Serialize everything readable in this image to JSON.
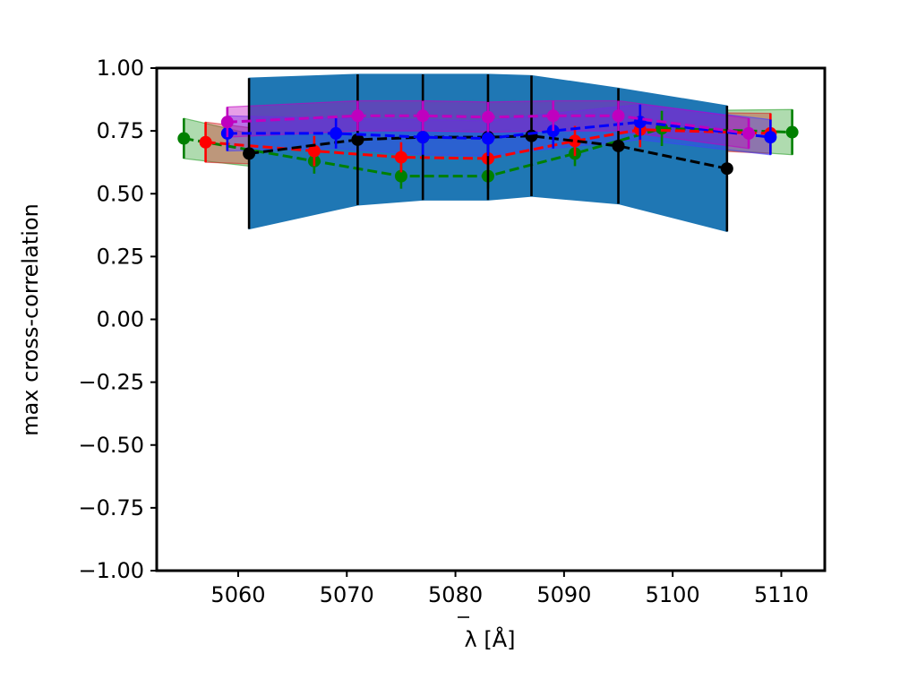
{
  "chart_data": {
    "type": "line",
    "xlabel": "λ [Å]",
    "ylabel": "max cross-correlation",
    "xlim": [
      5052.5,
      5114
    ],
    "ylim": [
      -1.0,
      1.0
    ],
    "x_ticks": [
      {
        "value": 5060,
        "label": "5060"
      },
      {
        "value": 5070,
        "label": "5070"
      },
      {
        "value": 5080,
        "label": "5080"
      },
      {
        "value": 5090,
        "label": "5090"
      },
      {
        "value": 5100,
        "label": "5100"
      },
      {
        "value": 5110,
        "label": "5110"
      }
    ],
    "y_ticks": [
      {
        "value": 1.0,
        "label": "1.00"
      },
      {
        "value": 0.75,
        "label": "0.75"
      },
      {
        "value": 0.5,
        "label": "0.50"
      },
      {
        "value": 0.25,
        "label": "0.25"
      },
      {
        "value": 0.0,
        "label": "0.00"
      },
      {
        "value": -0.25,
        "label": "−0.25"
      },
      {
        "value": -0.5,
        "label": "−0.50"
      },
      {
        "value": -0.75,
        "label": "−0.75"
      },
      {
        "value": -1.0,
        "label": "−1.00"
      }
    ],
    "grid": false,
    "legend": "none",
    "series": [
      {
        "color": "#008000",
        "band_color": "#2ca02c",
        "x": [
          5055,
          5067,
          5075,
          5083,
          5091,
          5099,
          5111
        ],
        "y": [
          0.72,
          0.63,
          0.57,
          0.57,
          0.66,
          0.76,
          0.745
        ],
        "err": [
          0.08,
          0.05,
          0.05,
          0.05,
          0.05,
          0.07,
          0.09
        ]
      },
      {
        "color": "#ff0000",
        "band_color": "#d62728",
        "x": [
          5057,
          5067,
          5075,
          5083,
          5091,
          5097,
          5109
        ],
        "y": [
          0.705,
          0.67,
          0.645,
          0.64,
          0.71,
          0.755,
          0.74
        ],
        "err": [
          0.08,
          0.06,
          0.06,
          0.06,
          0.06,
          0.07,
          0.08
        ]
      },
      {
        "color": "#000000",
        "band_color": "#1f77b4",
        "x": [
          5061,
          5071,
          5077,
          5083,
          5087,
          5095,
          5105
        ],
        "y": [
          0.66,
          0.715,
          0.725,
          0.725,
          0.73,
          0.69,
          0.6
        ],
        "err": [
          0.3,
          0.26,
          0.25,
          0.25,
          0.24,
          0.23,
          0.25
        ]
      },
      {
        "color": "#0000ff",
        "band_color": "#4040ff",
        "x": [
          5059,
          5069,
          5077,
          5083,
          5089,
          5097,
          5109
        ],
        "y": [
          0.74,
          0.74,
          0.725,
          0.72,
          0.75,
          0.785,
          0.725
        ],
        "err": [
          0.07,
          0.06,
          0.07,
          0.07,
          0.07,
          0.07,
          0.07
        ]
      },
      {
        "color": "#bf00bf",
        "band_color": "#bf00bf",
        "x": [
          5059,
          5071,
          5077,
          5083,
          5089,
          5095,
          5107
        ],
        "y": [
          0.785,
          0.81,
          0.81,
          0.805,
          0.81,
          0.81,
          0.74
        ],
        "err": [
          0.06,
          0.06,
          0.06,
          0.06,
          0.06,
          0.06,
          0.06
        ]
      }
    ]
  }
}
